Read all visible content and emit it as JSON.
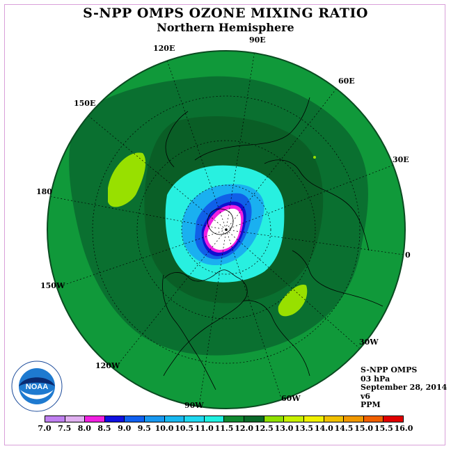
{
  "title": "S-NPP OMPS OZONE MIXING RATIO",
  "subtitle": "Northern Hemisphere",
  "info": {
    "instrument": "S-NPP OMPS",
    "level": "03 hPa",
    "date": "September 28, 2014",
    "version": "v6",
    "units": "PPM"
  },
  "longitude_labels": [
    "90E",
    "60E",
    "30E",
    "0",
    "30W",
    "60W",
    "90W",
    "120W",
    "150W",
    "180",
    "150E",
    "120E"
  ],
  "colorbar": {
    "labels": [
      "7.0",
      "7.5",
      "8.0",
      "8.5",
      "9.0",
      "9.5",
      "10.0",
      "10.5",
      "11.0",
      "11.5",
      "12.0",
      "12.5",
      "13.0",
      "13.5",
      "14.0",
      "14.5",
      "15.0",
      "15.5",
      "16.0"
    ],
    "colors": [
      "#c080f0",
      "#e0b0f0",
      "#f020e0",
      "#1010e0",
      "#1060f0",
      "#1898f0",
      "#18b8f0",
      "#20d8f0",
      "#20f0e0",
      "#108830",
      "#0a6828",
      "#90e000",
      "#c8f000",
      "#f0f000",
      "#f0c000",
      "#f09800",
      "#f06000",
      "#e00000",
      "#805030"
    ]
  },
  "logo": {
    "text": "NOAA",
    "icon": "noaa-logo-icon"
  }
}
